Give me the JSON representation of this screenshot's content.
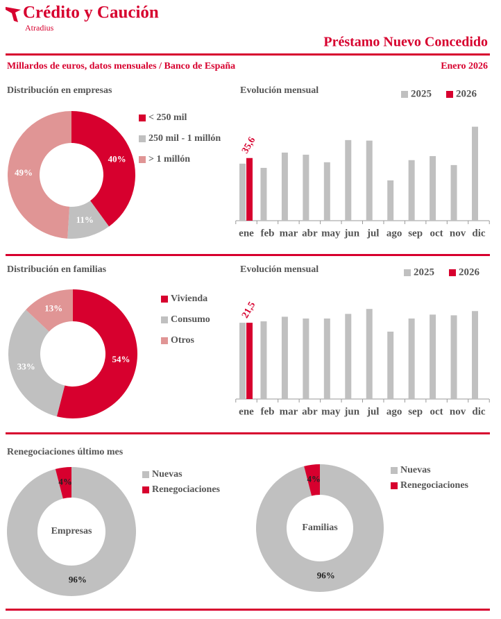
{
  "header": {
    "brand": "Crédito y Caución",
    "sub_brand": "Atradius",
    "title": "Préstamo Nuevo Concedido",
    "subtitle": "Millardos de euros, datos mensuales / Banco de España",
    "date": "Enero 2026"
  },
  "chart_data": [
    {
      "type": "donut",
      "title": "Distribución en empresas",
      "categories": [
        "< 250 mil",
        "250 mil - 1 millón",
        "> 1 millón"
      ],
      "values": [
        40,
        11,
        49
      ],
      "value_labels": [
        "40%",
        "11%",
        "49%"
      ],
      "colors": [
        "#d7002e",
        "#c0c0c0",
        "#e09595"
      ],
      "label_color": "#ffffff"
    },
    {
      "type": "bar",
      "title": "Evolución mensual",
      "categories": [
        "ene",
        "feb",
        "mar",
        "abr",
        "may",
        "jun",
        "jul",
        "ago",
        "sep",
        "oct",
        "nov",
        "dic"
      ],
      "ylim": [
        0,
        56
      ],
      "series": [
        {
          "name": "2025",
          "color": "#c0c0c0",
          "values": [
            32.4,
            30.0,
            38.7,
            37.5,
            33.2,
            45.8,
            45.5,
            22.9,
            34.4,
            36.7,
            31.6,
            53.4
          ]
        },
        {
          "name": "2026",
          "color": "#d7002e",
          "values": [
            35.6,
            null,
            null,
            null,
            null,
            null,
            null,
            null,
            null,
            null,
            null,
            null
          ],
          "value_labels": [
            "35,6",
            null,
            null,
            null,
            null,
            null,
            null,
            null,
            null,
            null,
            null,
            null
          ]
        }
      ]
    },
    {
      "type": "donut",
      "title": "Distribución en familias",
      "categories": [
        "Vivienda",
        "Consumo",
        "Otros"
      ],
      "values": [
        54,
        33,
        13
      ],
      "value_labels": [
        "54%",
        "33%",
        "13%"
      ],
      "colors": [
        "#d7002e",
        "#c0c0c0",
        "#e09595"
      ],
      "label_color": "#ffffff"
    },
    {
      "type": "bar",
      "title": "Evolución mensual",
      "categories": [
        "ene",
        "feb",
        "mar",
        "abr",
        "may",
        "jun",
        "jul",
        "ago",
        "sep",
        "oct",
        "nov",
        "dic"
      ],
      "ylim": [
        0,
        27
      ],
      "series": [
        {
          "name": "2025",
          "color": "#c0c0c0",
          "values": [
            21.5,
            21.9,
            23.2,
            22.7,
            22.7,
            24.0,
            25.4,
            19.0,
            22.7,
            23.8,
            23.6,
            24.8
          ]
        },
        {
          "name": "2026",
          "color": "#d7002e",
          "values": [
            21.5,
            null,
            null,
            null,
            null,
            null,
            null,
            null,
            null,
            null,
            null,
            null
          ],
          "value_labels": [
            "21,5",
            null,
            null,
            null,
            null,
            null,
            null,
            null,
            null,
            null,
            null,
            null
          ]
        }
      ]
    },
    {
      "type": "donut",
      "title": "Renegociaciones último mes",
      "center_label": "Empresas",
      "categories": [
        "Nuevas",
        "Renegociaciones"
      ],
      "values": [
        96,
        4
      ],
      "value_labels": [
        "96%",
        "4%"
      ],
      "colors": [
        "#c0c0c0",
        "#d7002e"
      ],
      "label_color": "#222222"
    },
    {
      "type": "donut",
      "center_label": "Familias",
      "categories": [
        "Nuevas",
        "Renegociaciones"
      ],
      "values": [
        96,
        4
      ],
      "value_labels": [
        "96%",
        "4%"
      ],
      "colors": [
        "#c0c0c0",
        "#d7002e"
      ],
      "label_color": "#222222"
    }
  ]
}
